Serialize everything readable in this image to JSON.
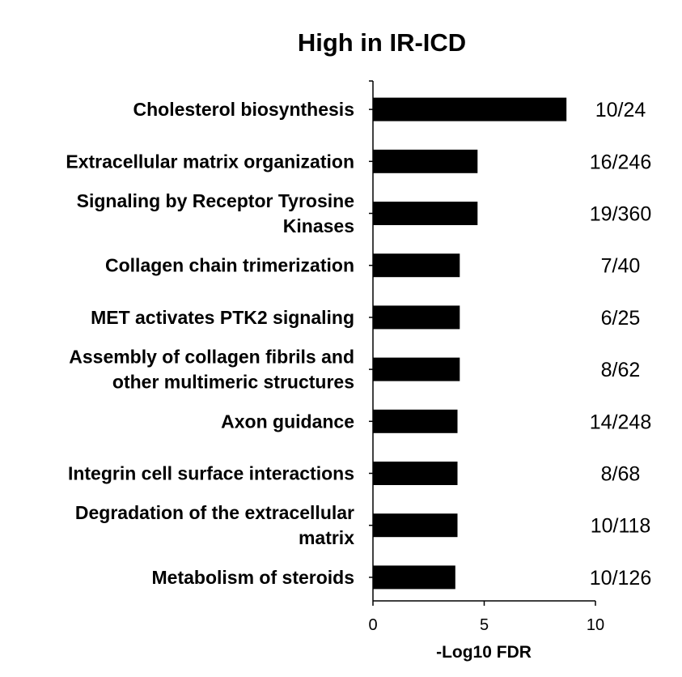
{
  "chart_data": {
    "type": "bar",
    "orientation": "horizontal",
    "title": "High in IR-ICD",
    "xlabel": "-Log10 FDR",
    "ylabel": "",
    "xlim": [
      0,
      10
    ],
    "xticks": [
      "0",
      "5",
      "10"
    ],
    "grid": false,
    "legend": "none",
    "bar_color": "#000000",
    "categories": [
      [
        "Cholesterol biosynthesis"
      ],
      [
        "Extracellular matrix organization"
      ],
      [
        "Signaling by Receptor Tyrosine",
        "Kinases"
      ],
      [
        "Collagen chain trimerization"
      ],
      [
        "MET activates PTK2 signaling"
      ],
      [
        "Assembly of collagen fibrils and",
        "other multimeric structures"
      ],
      [
        "Axon guidance"
      ],
      [
        "Integrin cell surface interactions"
      ],
      [
        "Degradation of the extracellular",
        "matrix"
      ],
      [
        "Metabolism of steroids"
      ]
    ],
    "values": [
      8.7,
      4.7,
      4.7,
      3.9,
      3.9,
      3.9,
      3.8,
      3.8,
      3.8,
      3.7
    ],
    "annotations": [
      "10/24",
      "16/246",
      "19/360",
      "7/40",
      "6/25",
      "8/62",
      "14/248",
      "8/68",
      "10/118",
      "10/126"
    ]
  }
}
